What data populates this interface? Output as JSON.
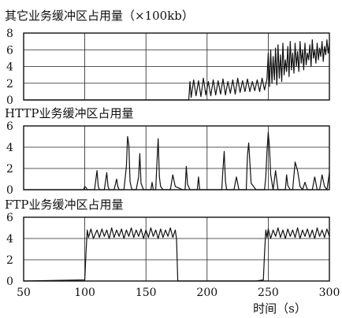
{
  "chart_data": [
    {
      "type": "line",
      "title": "其它业务缓冲区占用量（×100kb）",
      "xlim": [
        50,
        300
      ],
      "ylim": [
        0,
        8
      ],
      "yticks": [
        0,
        2,
        4,
        6,
        8
      ],
      "grid": true,
      "series": [
        {
          "x": [
            50,
            60,
            70,
            80,
            90,
            100,
            105,
            110,
            115,
            120,
            125,
            130,
            135,
            140,
            145,
            150,
            155,
            160,
            165,
            170,
            175,
            180,
            185,
            186,
            187,
            189,
            191,
            193,
            195,
            197,
            199,
            201,
            203,
            205,
            207,
            209,
            211,
            213,
            215,
            217,
            219,
            221,
            223,
            225,
            227,
            229,
            231,
            233,
            235,
            237,
            239,
            241,
            243,
            245,
            247,
            249,
            250,
            251,
            252,
            253,
            254,
            255,
            256,
            257,
            258,
            259,
            260,
            261,
            262,
            263,
            264,
            265,
            266,
            267,
            268,
            269,
            270,
            271,
            272,
            273,
            274,
            275,
            276,
            277,
            278,
            279,
            280,
            281,
            282,
            283,
            284,
            285,
            286,
            287,
            288,
            289,
            290,
            291,
            292,
            293,
            294,
            295,
            296,
            297,
            298,
            299,
            300
          ],
          "y": [
            0,
            0,
            0,
            0,
            0,
            0,
            0,
            0,
            0,
            0,
            0,
            0,
            0,
            0,
            0,
            0,
            0,
            0,
            0,
            0,
            0,
            0,
            0,
            2.2,
            0.3,
            2.4,
            0.5,
            2.3,
            0.4,
            2.6,
            0.6,
            2.2,
            0.5,
            2.4,
            0.6,
            2.3,
            0.7,
            2.5,
            0.6,
            2.2,
            0.8,
            2.4,
            0.7,
            2.6,
            0.9,
            2.3,
            1.0,
            2.5,
            1.0,
            2.2,
            1.1,
            2.4,
            1.0,
            2.6,
            1.2,
            2.5,
            5.6,
            1.6,
            6.0,
            2.0,
            5.2,
            2.4,
            6.2,
            1.8,
            6.6,
            2.6,
            5.4,
            2.2,
            6.8,
            3.0,
            4.8,
            3.4,
            6.4,
            2.8,
            7.0,
            3.6,
            5.6,
            3.2,
            6.8,
            4.0,
            5.8,
            3.4,
            7.0,
            4.4,
            6.0,
            3.6,
            6.8,
            4.2,
            5.6,
            4.8,
            6.6,
            4.0,
            7.2,
            5.0,
            6.0,
            4.4,
            6.8,
            4.8,
            6.2,
            5.2,
            7.0,
            4.6,
            6.4,
            5.4,
            7.2,
            5.6,
            6.8
          ]
        }
      ]
    },
    {
      "type": "line",
      "title": "HTTP业务缓冲区占用量",
      "xlim": [
        50,
        300
      ],
      "ylim": [
        0,
        6
      ],
      "yticks": [
        0,
        2,
        4,
        6
      ],
      "grid": true,
      "series": [
        {
          "x": [
            50,
            90,
            99,
            100,
            101,
            102,
            108,
            110,
            111,
            112,
            116,
            118,
            119,
            120,
            124,
            126,
            127,
            128,
            132,
            134,
            135,
            136,
            137,
            138,
            139,
            140,
            142,
            144,
            145,
            146,
            148,
            150,
            152,
            154,
            155,
            156,
            158,
            159,
            160,
            161,
            162,
            164,
            170,
            172,
            174,
            180,
            182,
            183,
            184,
            186,
            190,
            192,
            193,
            194,
            196,
            200,
            202,
            206,
            208,
            210,
            212,
            213,
            214,
            215,
            216,
            222,
            224,
            226,
            230,
            232,
            233,
            234,
            236,
            240,
            242,
            244,
            246,
            247,
            248,
            249,
            250,
            251,
            252,
            254,
            256,
            258,
            260,
            262,
            264,
            265,
            266,
            268,
            270,
            272,
            274,
            276,
            278,
            280,
            282,
            286,
            288,
            290,
            292,
            294,
            296,
            298,
            300
          ],
          "y": [
            0,
            0,
            0,
            0.3,
            0.2,
            0,
            0,
            1.8,
            0.3,
            0,
            0,
            1.6,
            0.3,
            0,
            0,
            1.0,
            0.3,
            0,
            0,
            2.2,
            5.0,
            4.2,
            0.8,
            0.2,
            0,
            0,
            0,
            1.2,
            3.4,
            0.6,
            0,
            0,
            0,
            0,
            0.7,
            0,
            0,
            2.6,
            4.8,
            1.2,
            0.3,
            0,
            0,
            1.4,
            0.3,
            0,
            0,
            2.2,
            0.5,
            0,
            0,
            0,
            1.2,
            0,
            0,
            0,
            0,
            0,
            0,
            0,
            0,
            2.0,
            3.6,
            0.8,
            0,
            0,
            1.2,
            0,
            0,
            0,
            3.2,
            4.4,
            0.6,
            0,
            0,
            0,
            0,
            0,
            1.2,
            3.6,
            5.4,
            4.0,
            1.4,
            0,
            1.8,
            0,
            0,
            0,
            0,
            1.4,
            0.4,
            0,
            0,
            2.6,
            1.8,
            0.3,
            0,
            0.7,
            0,
            0,
            1.2,
            0,
            0,
            1.4,
            0.3,
            0,
            1.6
          ]
        }
      ]
    },
    {
      "type": "line",
      "title": "FTP业务缓冲区占用量",
      "xlim": [
        50,
        300
      ],
      "ylim": [
        0,
        6
      ],
      "yticks": [
        0,
        2,
        4,
        6
      ],
      "xticks": [
        50,
        100,
        150,
        200,
        250,
        300
      ],
      "xlabel": "时间（s）",
      "grid": true,
      "series": [
        {
          "x": [
            50,
            100,
            101,
            102,
            103,
            105,
            107,
            110,
            112,
            114,
            116,
            118,
            120,
            122,
            124,
            126,
            128,
            130,
            132,
            134,
            136,
            138,
            140,
            142,
            144,
            146,
            148,
            150,
            152,
            154,
            156,
            158,
            160,
            162,
            164,
            166,
            168,
            170,
            172,
            174,
            175,
            176,
            200,
            210,
            220,
            230,
            240,
            246,
            247,
            248,
            249,
            250,
            252,
            254,
            256,
            258,
            260,
            262,
            264,
            266,
            268,
            270,
            272,
            274,
            276,
            278,
            280,
            282,
            284,
            286,
            288,
            290,
            292,
            294,
            296,
            298,
            300
          ],
          "y": [
            0,
            0.1,
            2.8,
            4.8,
            4.1,
            4.9,
            4.0,
            4.8,
            4.1,
            4.9,
            4.2,
            4.8,
            4.0,
            5.0,
            4.1,
            4.8,
            4.2,
            4.9,
            4.0,
            4.8,
            4.2,
            5.0,
            4.1,
            4.8,
            4.2,
            4.9,
            4.0,
            4.8,
            4.1,
            5.0,
            4.2,
            4.8,
            4.0,
            4.9,
            4.1,
            4.8,
            4.2,
            5.0,
            4.1,
            4.8,
            4.0,
            0,
            0,
            0,
            0,
            0,
            0,
            0.1,
            2.6,
            4.8,
            4.1,
            4.9,
            4.0,
            4.8,
            4.2,
            5.0,
            4.1,
            4.8,
            4.0,
            4.9,
            4.2,
            4.8,
            4.1,
            5.0,
            4.0,
            4.8,
            4.2,
            4.9,
            4.1,
            4.8,
            4.0,
            5.0,
            4.2,
            4.8,
            4.1,
            4.9,
            4.2
          ]
        }
      ]
    }
  ]
}
